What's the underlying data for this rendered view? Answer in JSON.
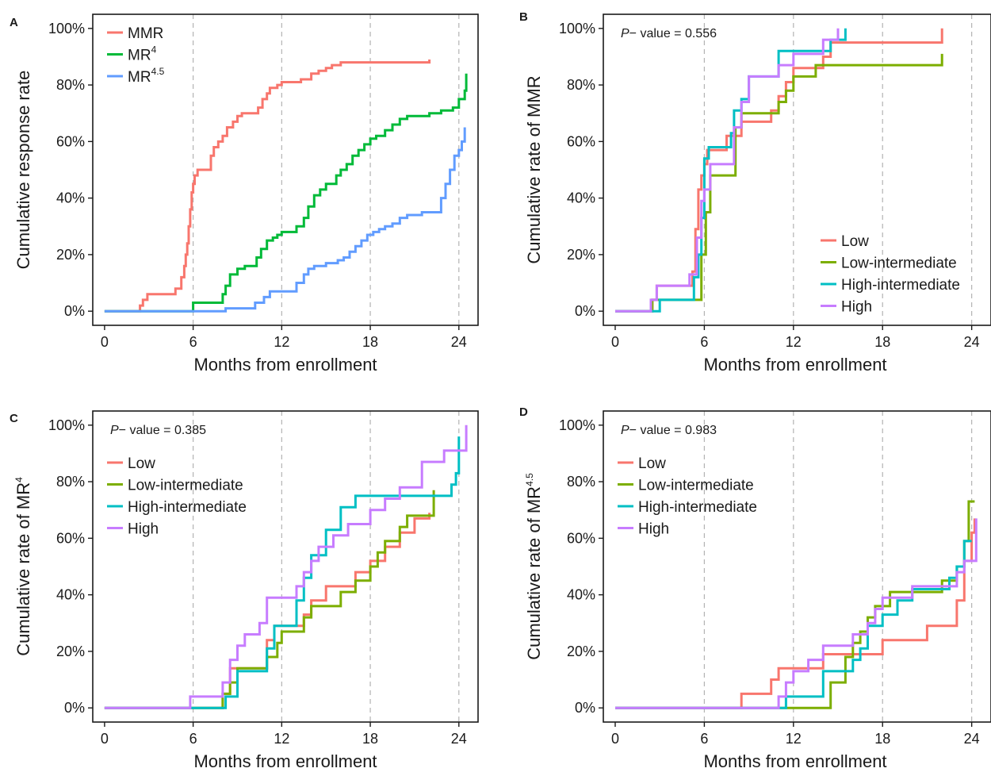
{
  "panel_letters": {
    "A": "A",
    "B": "B",
    "C": "C",
    "D": "D"
  },
  "palette": {
    "MMR": "#F8766D",
    "MR4": "#00BA38",
    "MR45": "#619CFF",
    "Low": "#F8766D",
    "Low-intermediate": "#7CAE00",
    "High-intermediate": "#00BFC4",
    "High": "#C77CFF"
  },
  "chart_data": [
    {
      "id": "A",
      "type": "line",
      "step": true,
      "ylabel": "Cumulative response rate",
      "xlabel": "Months from enrollment",
      "xticks": [
        "0",
        "6",
        "12",
        "18",
        "24"
      ],
      "yticks": [
        "0%",
        "20%",
        "40%",
        "60%",
        "80%",
        "100%"
      ],
      "xlim": [
        -0.8,
        25.3
      ],
      "ylim": [
        -0.05,
        1.05
      ],
      "grid": "vertical-dashed",
      "legend_position": "top-left",
      "legend": [
        {
          "key": "MMR",
          "label": "MMR",
          "sup": ""
        },
        {
          "key": "MR4",
          "label": "MR",
          "sup": "4"
        },
        {
          "key": "MR45",
          "label": "MR",
          "sup": "4.5"
        }
      ],
      "series": [
        {
          "key": "MMR",
          "name": "MMR",
          "x": [
            0,
            2.4,
            2.6,
            2.9,
            3.3,
            4.8,
            5.2,
            5.4,
            5.5,
            5.6,
            5.7,
            5.8,
            5.9,
            6.0,
            6.1,
            6.3,
            6.8,
            7.2,
            7.4,
            7.7,
            8.0,
            8.3,
            8.7,
            9.0,
            9.3,
            10.4,
            10.7,
            11.0,
            11.2,
            11.7,
            12.0,
            13.3,
            14.0,
            14.5,
            15.0,
            15.4,
            16.0,
            22.0
          ],
          "y": [
            0,
            0.02,
            0.04,
            0.06,
            0.06,
            0.08,
            0.12,
            0.16,
            0.2,
            0.24,
            0.3,
            0.36,
            0.42,
            0.45,
            0.48,
            0.5,
            0.5,
            0.55,
            0.58,
            0.6,
            0.62,
            0.65,
            0.67,
            0.69,
            0.7,
            0.72,
            0.75,
            0.77,
            0.79,
            0.8,
            0.81,
            0.82,
            0.84,
            0.85,
            0.86,
            0.87,
            0.88,
            0.89
          ]
        },
        {
          "key": "MR4",
          "name": "MR4",
          "x": [
            0,
            5.8,
            6.0,
            7.8,
            8.0,
            8.2,
            8.5,
            9.0,
            9.5,
            10.3,
            10.6,
            11.0,
            11.4,
            11.7,
            12.0,
            13.0,
            13.5,
            13.8,
            14.2,
            14.6,
            15.0,
            15.4,
            15.7,
            16.0,
            16.4,
            16.8,
            17.2,
            17.6,
            18.0,
            18.4,
            19.0,
            19.5,
            20.0,
            20.5,
            21.0,
            22.0,
            22.8,
            23.2,
            23.6,
            24.0,
            24.4,
            24.5
          ],
          "y": [
            0,
            0,
            0.03,
            0.03,
            0.06,
            0.09,
            0.13,
            0.15,
            0.16,
            0.19,
            0.22,
            0.25,
            0.26,
            0.27,
            0.28,
            0.3,
            0.33,
            0.37,
            0.41,
            0.43,
            0.45,
            0.45,
            0.48,
            0.5,
            0.52,
            0.55,
            0.57,
            0.59,
            0.61,
            0.62,
            0.64,
            0.66,
            0.68,
            0.69,
            0.69,
            0.7,
            0.71,
            0.71,
            0.72,
            0.75,
            0.78,
            0.84
          ]
        },
        {
          "key": "MR45",
          "name": "MR4.5",
          "x": [
            0,
            8.0,
            8.2,
            9.5,
            10.2,
            10.8,
            11.2,
            11.5,
            12.0,
            13.0,
            13.5,
            13.8,
            14.2,
            15.0,
            15.8,
            16.2,
            16.6,
            17.0,
            17.4,
            17.8,
            18.2,
            18.6,
            19.0,
            19.5,
            20.0,
            20.5,
            21.0,
            21.5,
            22.0,
            22.8,
            23.1,
            23.4,
            23.7,
            24.0,
            24.2,
            24.4
          ],
          "y": [
            0,
            0,
            0.01,
            0.01,
            0.03,
            0.05,
            0.07,
            0.07,
            0.07,
            0.1,
            0.13,
            0.15,
            0.16,
            0.17,
            0.18,
            0.19,
            0.21,
            0.23,
            0.25,
            0.27,
            0.28,
            0.29,
            0.3,
            0.31,
            0.33,
            0.34,
            0.34,
            0.35,
            0.35,
            0.4,
            0.45,
            0.5,
            0.55,
            0.57,
            0.6,
            0.65
          ]
        }
      ]
    },
    {
      "id": "B",
      "type": "line",
      "step": true,
      "ylabel": "Cumulative rate of MMR",
      "xlabel": "Months from enrollment",
      "xticks": [
        "0",
        "6",
        "12",
        "18",
        "24"
      ],
      "yticks": [
        "0%",
        "20%",
        "40%",
        "60%",
        "80%",
        "100%"
      ],
      "xlim": [
        -0.8,
        25.3
      ],
      "ylim": [
        -0.05,
        1.05
      ],
      "grid": "vertical-dashed",
      "legend_position": "bottom-right",
      "pvalue": {
        "prefix": "P",
        "text": "− value = 0.556"
      },
      "legend": [
        {
          "key": "Low",
          "label": "Low",
          "sup": ""
        },
        {
          "key": "Low-intermediate",
          "label": "Low-intermediate",
          "sup": ""
        },
        {
          "key": "High-intermediate",
          "label": "High-intermediate",
          "sup": ""
        },
        {
          "key": "High",
          "label": "High",
          "sup": ""
        }
      ],
      "series": [
        {
          "key": "Low",
          "name": "Low",
          "x": [
            0,
            2.5,
            2.8,
            4.8,
            5.2,
            5.4,
            5.6,
            5.8,
            6.0,
            6.2,
            7.0,
            7.5,
            8.0,
            8.5,
            9.0,
            10.5,
            11.0,
            11.5,
            12.0,
            14.0,
            14.5,
            22.0
          ],
          "y": [
            0,
            0.04,
            0.09,
            0.09,
            0.14,
            0.29,
            0.43,
            0.48,
            0.52,
            0.57,
            0.57,
            0.62,
            0.62,
            0.67,
            0.67,
            0.71,
            0.76,
            0.81,
            0.86,
            0.9,
            0.95,
            1.0
          ]
        },
        {
          "key": "Low-intermediate",
          "name": "Low-intermediate",
          "x": [
            0,
            2.5,
            5.4,
            5.8,
            6.1,
            6.4,
            7.5,
            8.1,
            8.5,
            9.0,
            11.0,
            11.5,
            12.0,
            13.5,
            14.5,
            22.0
          ],
          "y": [
            0,
            0.04,
            0.04,
            0.2,
            0.35,
            0.48,
            0.48,
            0.65,
            0.7,
            0.7,
            0.74,
            0.78,
            0.83,
            0.87,
            0.87,
            0.91
          ]
        },
        {
          "key": "High-intermediate",
          "name": "High-intermediate",
          "x": [
            0,
            2.6,
            3.0,
            4.8,
            5.3,
            5.6,
            5.8,
            6.0,
            6.3,
            7.5,
            7.8,
            8.0,
            8.5,
            9.0,
            10.5,
            11.0,
            12.0,
            14.5,
            15.0,
            15.5
          ],
          "y": [
            0,
            0,
            0.04,
            0.04,
            0.12,
            0.2,
            0.33,
            0.54,
            0.58,
            0.58,
            0.63,
            0.71,
            0.75,
            0.83,
            0.83,
            0.92,
            0.92,
            0.96,
            0.96,
            1.0
          ]
        },
        {
          "key": "High",
          "name": "High",
          "x": [
            0,
            2.4,
            2.8,
            4.6,
            5.0,
            5.5,
            5.8,
            6.0,
            6.4,
            7.0,
            8.0,
            8.5,
            9.0,
            10.5,
            11.0,
            12.0,
            13.0,
            14.0,
            15.0
          ],
          "y": [
            0,
            0.04,
            0.09,
            0.09,
            0.13,
            0.26,
            0.39,
            0.43,
            0.52,
            0.52,
            0.65,
            0.74,
            0.83,
            0.83,
            0.87,
            0.91,
            0.91,
            0.96,
            1.0
          ]
        }
      ]
    },
    {
      "id": "C",
      "type": "line",
      "step": true,
      "ylabel": "Cumulative rate of MR",
      "ylabel_sup": "4",
      "xlabel": "Months from enrollment",
      "xticks": [
        "0",
        "6",
        "12",
        "18",
        "24"
      ],
      "yticks": [
        "0%",
        "20%",
        "40%",
        "60%",
        "80%",
        "100%"
      ],
      "xlim": [
        -0.8,
        25.3
      ],
      "ylim": [
        -0.05,
        1.05
      ],
      "grid": "vertical-dashed",
      "legend_position": "top-left",
      "pvalue": {
        "prefix": "P",
        "text": "− value = 0.385"
      },
      "legend": [
        {
          "key": "Low",
          "label": "Low",
          "sup": ""
        },
        {
          "key": "Low-intermediate",
          "label": "Low-intermediate",
          "sup": ""
        },
        {
          "key": "High-intermediate",
          "label": "High-intermediate",
          "sup": ""
        },
        {
          "key": "High",
          "label": "High",
          "sup": ""
        }
      ],
      "series": [
        {
          "key": "Low",
          "name": "Low",
          "x": [
            0,
            5.8,
            8.0,
            8.5,
            10.5,
            11.0,
            11.5,
            13.0,
            13.5,
            14.0,
            15.0,
            16.0,
            17.0,
            18.0,
            19.0,
            20.0,
            21.0,
            22.0
          ],
          "y": [
            0,
            0,
            0.05,
            0.14,
            0.14,
            0.24,
            0.29,
            0.29,
            0.33,
            0.38,
            0.43,
            0.43,
            0.48,
            0.52,
            0.57,
            0.62,
            0.67,
            0.69
          ]
        },
        {
          "key": "Low-intermediate",
          "name": "Low-intermediate",
          "x": [
            0,
            5.8,
            8.0,
            8.5,
            9.0,
            10.0,
            11.0,
            11.7,
            12.0,
            13.0,
            13.5,
            14.0,
            15.0,
            16.0,
            17.0,
            18.0,
            18.5,
            19.0,
            20.0,
            20.5,
            22.0,
            22.3
          ],
          "y": [
            0,
            0,
            0.05,
            0.09,
            0.14,
            0.14,
            0.18,
            0.23,
            0.27,
            0.27,
            0.32,
            0.36,
            0.36,
            0.41,
            0.45,
            0.5,
            0.55,
            0.59,
            0.64,
            0.68,
            0.68,
            0.77
          ]
        },
        {
          "key": "High-intermediate",
          "name": "High-intermediate",
          "x": [
            0,
            5.8,
            8.2,
            9.0,
            10.5,
            11.0,
            11.5,
            12.0,
            13.0,
            13.5,
            14.0,
            15.0,
            16.0,
            17.0,
            18.0,
            20.0,
            22.0,
            23.0,
            23.5,
            23.8,
            24.0
          ],
          "y": [
            0,
            0,
            0.04,
            0.13,
            0.13,
            0.21,
            0.29,
            0.29,
            0.38,
            0.46,
            0.54,
            0.63,
            0.71,
            0.75,
            0.75,
            0.75,
            0.75,
            0.75,
            0.79,
            0.83,
            0.96
          ]
        },
        {
          "key": "High",
          "name": "High",
          "x": [
            0,
            5.8,
            8.0,
            8.5,
            9.0,
            9.5,
            10.5,
            11.0,
            12.0,
            13.0,
            13.5,
            14.0,
            14.5,
            15.5,
            16.5,
            18.0,
            19.0,
            20.0,
            21.5,
            23.0,
            24.0,
            24.5
          ],
          "y": [
            0,
            0.04,
            0.09,
            0.17,
            0.22,
            0.26,
            0.3,
            0.39,
            0.39,
            0.43,
            0.48,
            0.52,
            0.57,
            0.61,
            0.65,
            0.7,
            0.74,
            0.78,
            0.87,
            0.91,
            0.91,
            1.0
          ]
        }
      ]
    },
    {
      "id": "D",
      "type": "line",
      "step": true,
      "ylabel": "Cumulative rate of MR",
      "ylabel_sup": "4.5",
      "xlabel": "Months from enrollment",
      "xticks": [
        "0",
        "6",
        "12",
        "18",
        "24"
      ],
      "yticks": [
        "0%",
        "20%",
        "40%",
        "60%",
        "80%",
        "100%"
      ],
      "xlim": [
        -0.8,
        25.3
      ],
      "ylim": [
        -0.05,
        1.05
      ],
      "grid": "vertical-dashed",
      "legend_position": "top-left",
      "pvalue": {
        "prefix": "P",
        "text": "− value = 0.983"
      },
      "legend": [
        {
          "key": "Low",
          "label": "Low",
          "sup": ""
        },
        {
          "key": "Low-intermediate",
          "label": "Low-intermediate",
          "sup": ""
        },
        {
          "key": "High-intermediate",
          "label": "High-intermediate",
          "sup": ""
        },
        {
          "key": "High",
          "label": "High",
          "sup": ""
        }
      ],
      "series": [
        {
          "key": "Low",
          "name": "Low",
          "x": [
            0,
            8.5,
            10.5,
            11.0,
            13.0,
            14.0,
            15.0,
            16.0,
            17.0,
            18.0,
            19.0,
            20.0,
            21.0,
            22.0,
            23.0,
            23.5,
            24.0,
            24.2
          ],
          "y": [
            0,
            0.05,
            0.1,
            0.14,
            0.14,
            0.19,
            0.19,
            0.19,
            0.19,
            0.24,
            0.24,
            0.24,
            0.29,
            0.29,
            0.38,
            0.52,
            0.62,
            0.67
          ]
        },
        {
          "key": "Low-intermediate",
          "name": "Low-intermediate",
          "x": [
            0,
            14.0,
            14.5,
            15.5,
            16.0,
            16.5,
            17.0,
            17.5,
            18.5,
            19.0,
            21.0,
            22.0,
            23.0,
            23.5,
            23.8,
            24.2
          ],
          "y": [
            0,
            0,
            0.09,
            0.18,
            0.23,
            0.27,
            0.32,
            0.36,
            0.41,
            0.41,
            0.41,
            0.45,
            0.5,
            0.59,
            0.73,
            0.73
          ]
        },
        {
          "key": "High-intermediate",
          "name": "High-intermediate",
          "x": [
            0,
            11.5,
            12.5,
            14.0,
            15.0,
            16.0,
            16.5,
            17.0,
            17.5,
            18.0,
            19.0,
            20.0,
            21.5,
            22.5,
            23.0,
            23.5,
            24.0
          ],
          "y": [
            0,
            0.04,
            0.04,
            0.13,
            0.13,
            0.17,
            0.21,
            0.29,
            0.29,
            0.33,
            0.38,
            0.42,
            0.42,
            0.46,
            0.5,
            0.59,
            0.59
          ]
        },
        {
          "key": "High",
          "name": "High",
          "x": [
            0,
            11.0,
            11.5,
            12.0,
            13.0,
            14.0,
            15.0,
            16.0,
            17.0,
            17.5,
            18.0,
            20.0,
            22.0,
            23.0,
            23.5,
            24.0,
            24.3
          ],
          "y": [
            0,
            0.04,
            0.09,
            0.13,
            0.17,
            0.22,
            0.22,
            0.26,
            0.3,
            0.35,
            0.39,
            0.43,
            0.43,
            0.48,
            0.52,
            0.52,
            0.67
          ]
        }
      ]
    }
  ]
}
